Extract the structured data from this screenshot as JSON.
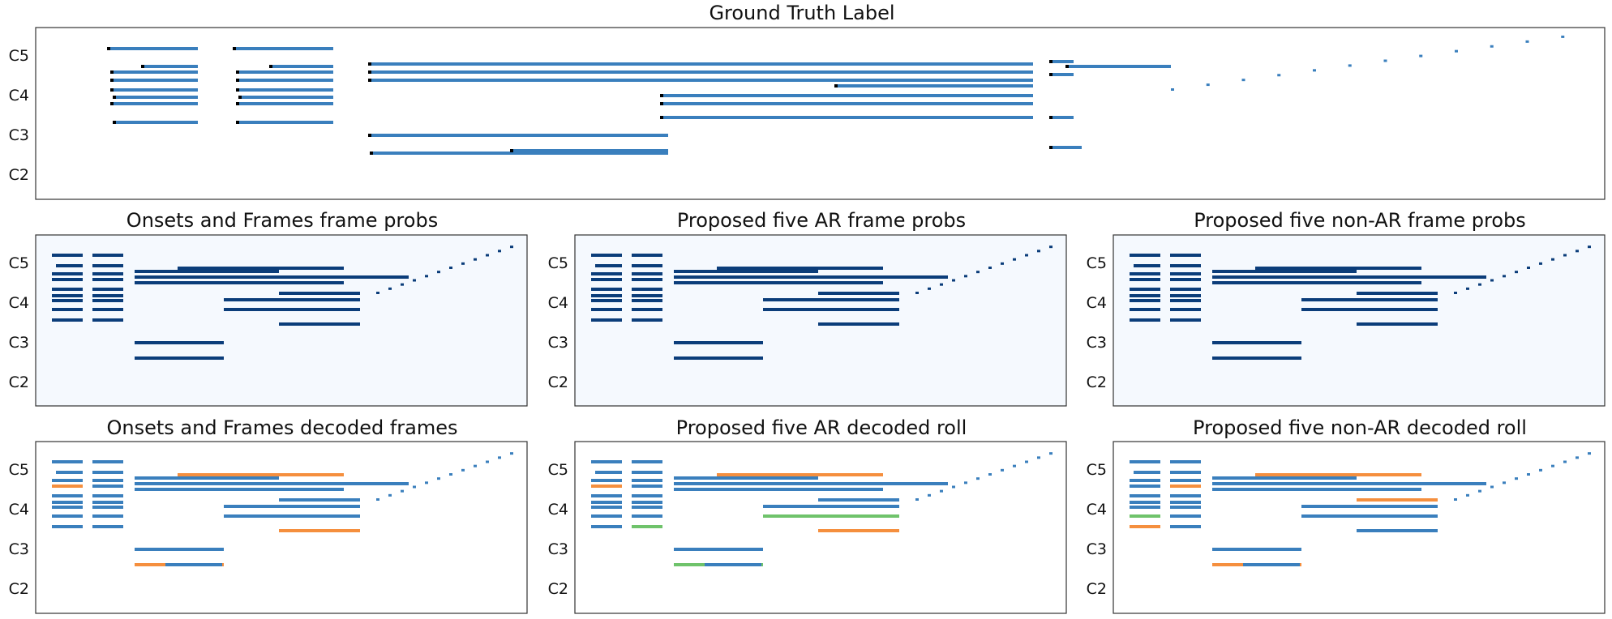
{
  "figure": {
    "colors": {
      "note": "#3a7fbd",
      "prob_dark": "#0b3d7a",
      "prob_bg": "#f5f9fe",
      "false_positive": "#f58f3e",
      "false_negative": "#6fc36b",
      "onset_marker": "#000000"
    }
  },
  "chart_data": [
    {
      "id": "gt",
      "type": "heatmap",
      "title": "Ground Truth Label",
      "yticks": [
        "C5",
        "C4",
        "C3",
        "C2"
      ],
      "background": "white"
    },
    {
      "id": "of_probs",
      "type": "heatmap",
      "title": "Onsets and Frames frame probs",
      "yticks": [
        "C5",
        "C4",
        "C3",
        "C2"
      ],
      "background": "probs"
    },
    {
      "id": "ar_probs",
      "type": "heatmap",
      "title": "Proposed five AR frame probs",
      "yticks": [
        "C5",
        "C4",
        "C3",
        "C2"
      ],
      "background": "probs"
    },
    {
      "id": "nar_probs",
      "type": "heatmap",
      "title": "Proposed five non-AR frame probs",
      "yticks": [
        "C5",
        "C4",
        "C3",
        "C2"
      ],
      "background": "probs"
    },
    {
      "id": "of_dec",
      "type": "heatmap",
      "title": "Onsets and Frames decoded frames",
      "yticks": [
        "C5",
        "C4",
        "C3",
        "C2"
      ],
      "background": "white"
    },
    {
      "id": "ar_dec",
      "type": "heatmap",
      "title": "Proposed five AR decoded roll",
      "yticks": [
        "C5",
        "C4",
        "C3",
        "C2"
      ],
      "background": "white"
    },
    {
      "id": "nar_dec",
      "type": "heatmap",
      "title": "Proposed five non-AR decoded roll",
      "yticks": [
        "C5",
        "C4",
        "C3",
        "C2"
      ],
      "background": "white"
    }
  ]
}
